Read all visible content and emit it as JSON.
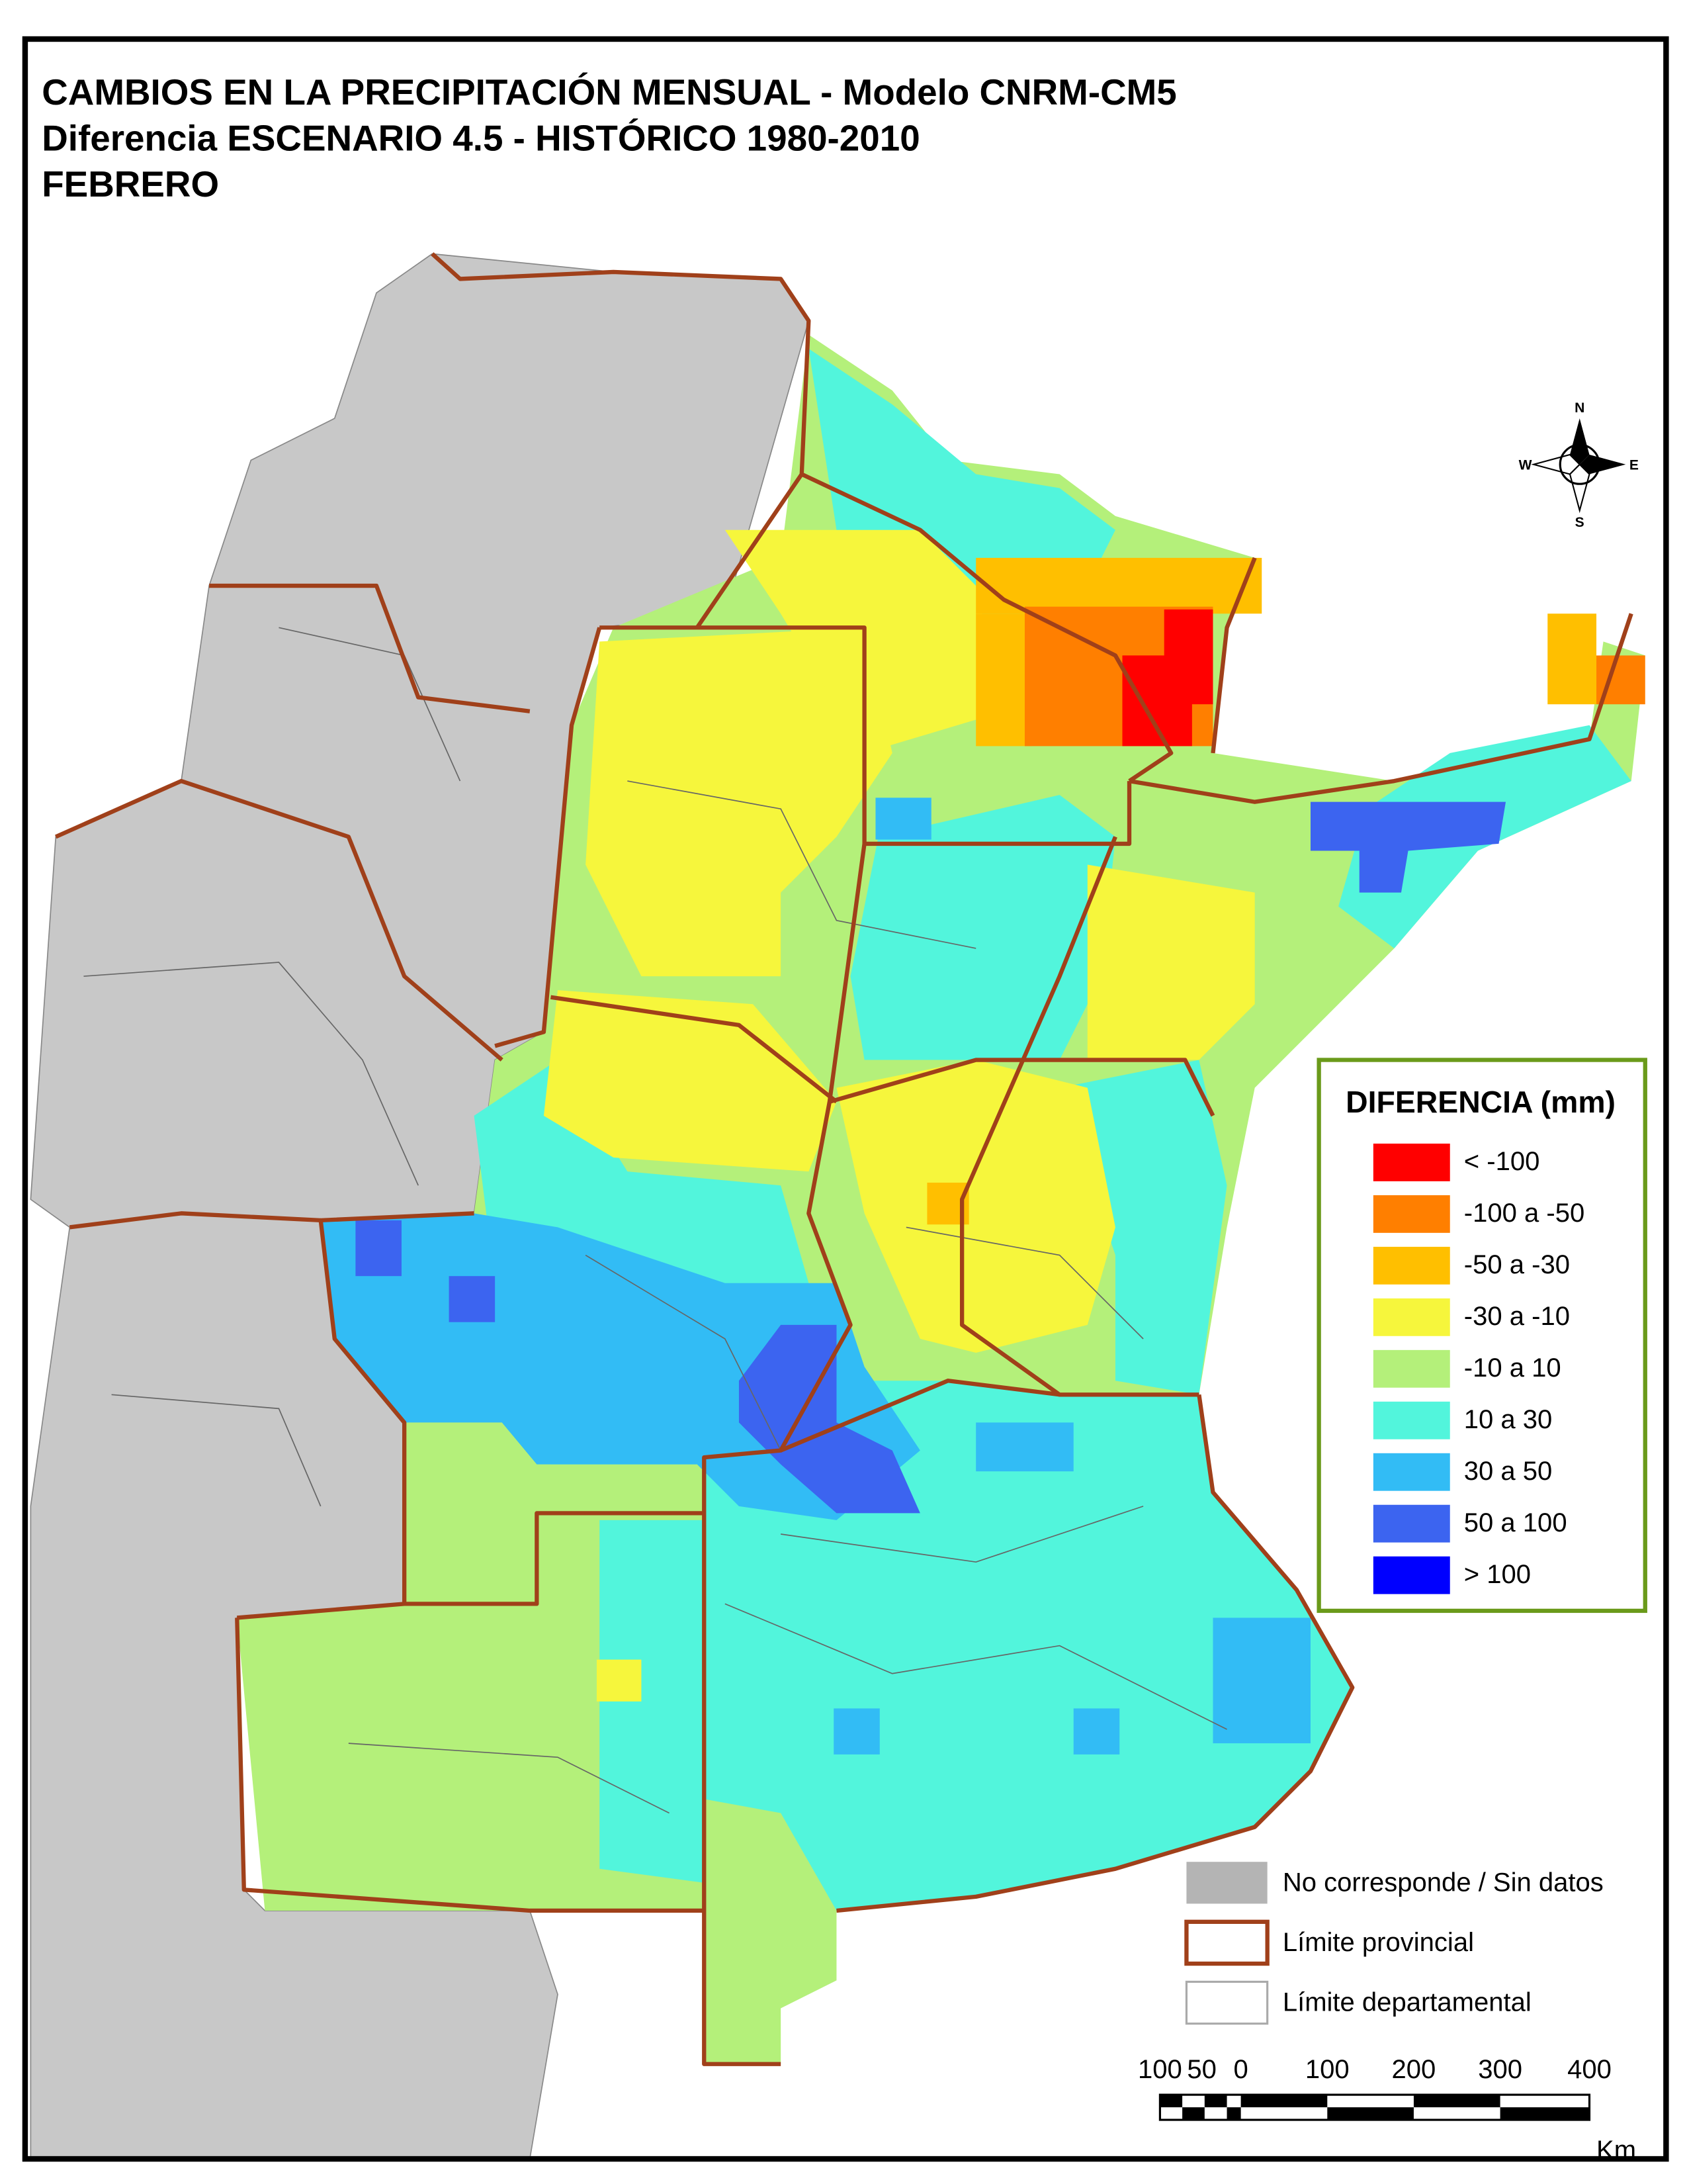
{
  "title_lines": [
    "CAMBIOS EN LA PRECIPITACIÓN MENSUAL - Modelo CNRM-CM5",
    "Diferencia ESCENARIO 4.5 - HISTÓRICO 1980-2010",
    "FEBRERO"
  ],
  "compass": {
    "n": "N",
    "s": "S",
    "e": "E",
    "w": "W"
  },
  "legend": {
    "title": "DIFERENCIA (mm)",
    "classes": [
      {
        "label": "< -100",
        "color": "#ff0000"
      },
      {
        "label": "-100 a -50",
        "color": "#ff7f00"
      },
      {
        "label": "-50 a -30",
        "color": "#ffbf00"
      },
      {
        "label": "-30 a -10",
        "color": "#f6f63c"
      },
      {
        "label": "-10 a 10",
        "color": "#b4f07a"
      },
      {
        "label": "10 a 30",
        "color": "#52f5dc"
      },
      {
        "label": "30 a 50",
        "color": "#32bcf5"
      },
      {
        "label": "50 a 100",
        "color": "#3c64f0"
      },
      {
        "label": "> 100",
        "color": "#0000ff"
      }
    ]
  },
  "extra_legend": [
    {
      "label": "No corresponde / Sin datos",
      "kind": "nodata"
    },
    {
      "label": "Límite provincial",
      "kind": "provincial"
    },
    {
      "label": "Límite departamental",
      "kind": "departmental"
    }
  ],
  "scale_bar": {
    "labels": [
      "100",
      "50",
      "0",
      "100",
      "200",
      "300",
      "400"
    ],
    "unit": "Km"
  }
}
